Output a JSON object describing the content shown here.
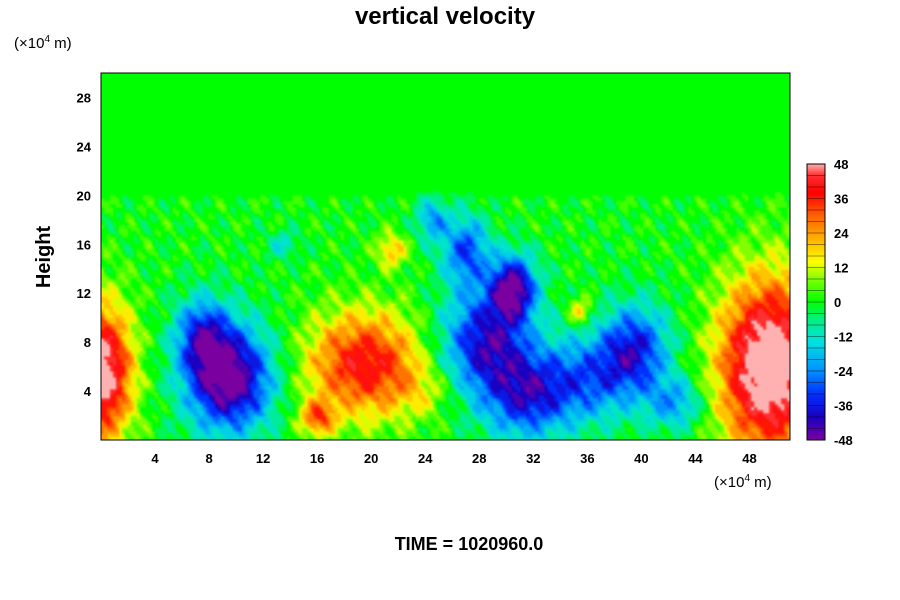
{
  "chart_data": {
    "type": "heatmap",
    "title": "vertical velocity",
    "xlabel": "",
    "ylabel": "Height",
    "x_unit_prefix": "(×10",
    "x_unit_exp": "4",
    "x_unit_suffix": " m)",
    "y_unit_prefix": "(×10",
    "y_unit_exp": "4",
    "y_unit_suffix": " m)",
    "xlim": [
      0,
      51
    ],
    "ylim": [
      0,
      30
    ],
    "x_ticks": [
      4,
      8,
      12,
      16,
      20,
      24,
      28,
      32,
      36,
      40,
      44,
      48
    ],
    "y_ticks": [
      4,
      8,
      12,
      16,
      20,
      24,
      28
    ],
    "colorbar": {
      "range": [
        -48,
        48
      ],
      "ticks": [
        48,
        36,
        24,
        12,
        0,
        -12,
        -24,
        -36,
        -48
      ],
      "stops": [
        {
          "v": -48,
          "c": "#7a00a0"
        },
        {
          "v": -40,
          "c": "#1a00c0"
        },
        {
          "v": -32,
          "c": "#0030ff"
        },
        {
          "v": -24,
          "c": "#0090ff"
        },
        {
          "v": -14,
          "c": "#00e0e0"
        },
        {
          "v": -6,
          "c": "#00f080"
        },
        {
          "v": 0,
          "c": "#00ff00"
        },
        {
          "v": 8,
          "c": "#80ff00"
        },
        {
          "v": 14,
          "c": "#ffff00"
        },
        {
          "v": 22,
          "c": "#ffb000"
        },
        {
          "v": 30,
          "c": "#ff6000"
        },
        {
          "v": 38,
          "c": "#ff0000"
        },
        {
          "v": 44,
          "c": "#ff3030"
        },
        {
          "v": 48,
          "c": "#ffb0b0"
        }
      ]
    },
    "features": [
      {
        "x": 0,
        "y": 5.5,
        "sx": 1.6,
        "sy": 3.8,
        "amp": 55
      },
      {
        "x": 9.5,
        "y": 5,
        "sx": 2.2,
        "sy": 3,
        "amp": -52
      },
      {
        "x": 7.5,
        "y": 8.5,
        "sx": 1.4,
        "sy": 2.2,
        "amp": -30
      },
      {
        "x": 19.5,
        "y": 6.2,
        "sx": 3,
        "sy": 3,
        "amp": 40
      },
      {
        "x": 16,
        "y": 1.8,
        "sx": 0.9,
        "sy": 1,
        "amp": 28
      },
      {
        "x": 21.5,
        "y": 15.5,
        "sx": 0.8,
        "sy": 1,
        "amp": 20
      },
      {
        "x": 28.5,
        "y": 8,
        "sx": 2.3,
        "sy": 3,
        "amp": -40
      },
      {
        "x": 30.5,
        "y": 12.5,
        "sx": 1.2,
        "sy": 1.8,
        "amp": -45
      },
      {
        "x": 27,
        "y": 15.5,
        "sx": 1.2,
        "sy": 2,
        "amp": -30
      },
      {
        "x": 24.5,
        "y": 18,
        "sx": 0.8,
        "sy": 1.2,
        "amp": -22
      },
      {
        "x": 31.5,
        "y": 3.5,
        "sx": 2.2,
        "sy": 2.5,
        "amp": -32
      },
      {
        "x": 36,
        "y": 5,
        "sx": 2.5,
        "sy": 2.5,
        "amp": -26
      },
      {
        "x": 39.5,
        "y": 7.5,
        "sx": 1.8,
        "sy": 2.5,
        "amp": -34
      },
      {
        "x": 42.5,
        "y": 3,
        "sx": 1.5,
        "sy": 1.5,
        "amp": -22
      },
      {
        "x": 49.5,
        "y": 6,
        "sx": 2.6,
        "sy": 5,
        "amp": 60
      },
      {
        "x": 35.5,
        "y": 10.5,
        "sx": 0.6,
        "sy": 0.8,
        "amp": 20
      },
      {
        "x": 13.5,
        "y": 16,
        "sx": 0.8,
        "sy": 0.8,
        "amp": -12
      },
      {
        "x": 24,
        "y": 4,
        "sx": 1.6,
        "sy": 1.5,
        "amp": 8
      }
    ]
  },
  "footer": "TIME = 1020960.0"
}
